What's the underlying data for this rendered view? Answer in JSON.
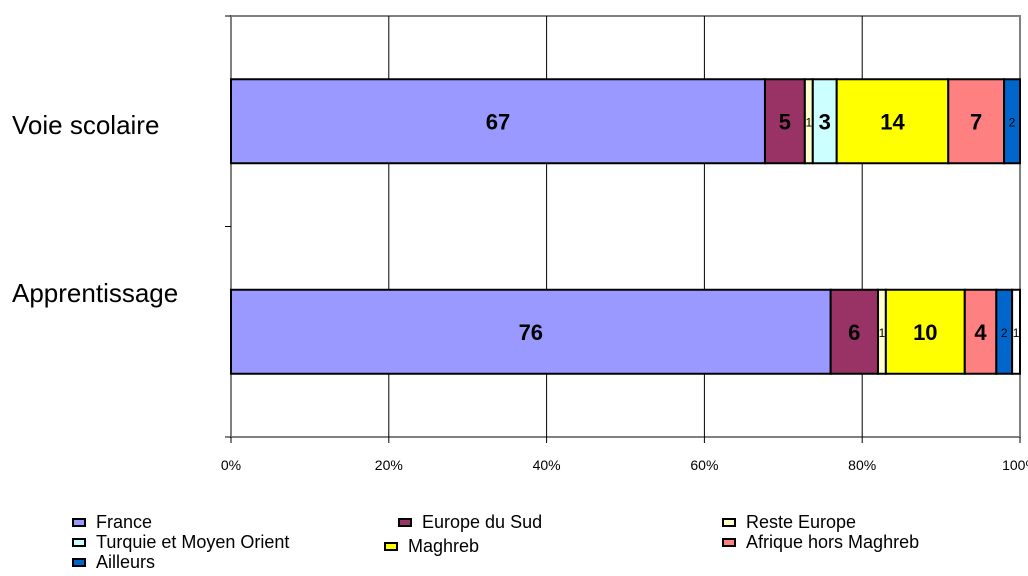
{
  "chart_data": {
    "type": "bar",
    "orientation": "horizontal",
    "stacked": "percent",
    "categories": [
      "Voie scolaire",
      "Apprentissage"
    ],
    "series": [
      {
        "name": "France",
        "color": "#9999ff",
        "values": [
          67,
          76
        ],
        "labels": [
          "67",
          "76"
        ]
      },
      {
        "name": "Europe du Sud",
        "color": "#993366",
        "values": [
          5,
          6
        ],
        "labels": [
          "5",
          "6"
        ]
      },
      {
        "name": "Reste Europe",
        "color": "#ffffcc",
        "values": [
          1,
          1
        ],
        "labels": [
          "1",
          "1"
        ]
      },
      {
        "name": "Turquie et Moyen Orient",
        "color": "#ccffff",
        "values": [
          3,
          0
        ],
        "labels": [
          "3",
          "0"
        ]
      },
      {
        "name": "Maghreb",
        "color": "#ffff00",
        "values": [
          14,
          10
        ],
        "labels": [
          "14",
          "10"
        ]
      },
      {
        "name": "Afrique hors Maghreb",
        "color": "#ff8080",
        "values": [
          7,
          4
        ],
        "labels": [
          "7",
          "4"
        ]
      },
      {
        "name": "Ailleurs",
        "color": "#0066cc",
        "values": [
          2,
          2
        ],
        "labels": [
          "2",
          "2"
        ]
      },
      {
        "name": "",
        "color": "#ffffff",
        "values": [
          0,
          1
        ],
        "labels": [
          "0",
          "1"
        ]
      }
    ],
    "xlim": [
      0,
      100
    ],
    "xticks": [
      "0%",
      "20%",
      "40%",
      "60%",
      "80%",
      "100%"
    ],
    "grid": true,
    "legend_position": "bottom"
  },
  "legend": {
    "items": [
      {
        "label": "France",
        "color": "#9999ff"
      },
      {
        "label": "Europe du Sud",
        "color": "#993366"
      },
      {
        "label": "Reste Europe",
        "color": "#ffffcc"
      },
      {
        "label": "Turquie et Moyen Orient",
        "color": "#ccffff"
      },
      {
        "label": "Maghreb",
        "color": "#ffff00"
      },
      {
        "label": "Afrique hors Maghreb",
        "color": "#ff8080"
      },
      {
        "label": "Ailleurs",
        "color": "#0066cc"
      }
    ]
  }
}
